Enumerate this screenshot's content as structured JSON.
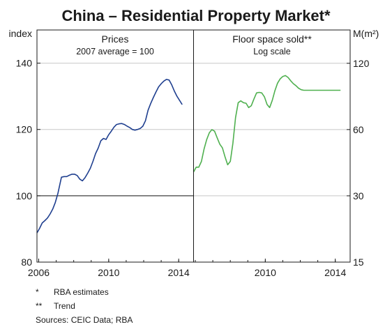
{
  "title": "China – Residential Property Market*",
  "chart_data": [
    {
      "type": "line",
      "panel_title": "Prices",
      "panel_subtitle": "2007 average = 100",
      "ylabel": "index",
      "ylim": [
        80,
        150
      ],
      "yticks": [
        80,
        100,
        120,
        140
      ],
      "xlim": [
        2005.9,
        2014.85
      ],
      "xticks": [
        "2006",
        "2010",
        "2014"
      ],
      "xtick_values": [
        2006,
        2010,
        2014
      ],
      "reference_line": 100,
      "grid": true,
      "color": "#1f3f8f",
      "series": [
        {
          "x": [
            2005.9,
            2006.05,
            2006.2,
            2006.35,
            2006.5,
            2006.65,
            2006.8,
            2006.95,
            2007.1,
            2007.2,
            2007.3,
            2007.45,
            2007.6,
            2007.75,
            2007.9,
            2008.05,
            2008.2,
            2008.35,
            2008.5,
            2008.65,
            2008.8,
            2008.95,
            2009.1,
            2009.25,
            2009.4,
            2009.55,
            2009.7,
            2009.85,
            2010.0,
            2010.15,
            2010.3,
            2010.45,
            2010.6,
            2010.75,
            2010.9,
            2011.05,
            2011.2,
            2011.35,
            2011.5,
            2011.65,
            2011.8,
            2011.95,
            2012.1,
            2012.25,
            2012.4,
            2012.55,
            2012.7,
            2012.85,
            2013.0,
            2013.15,
            2013.3,
            2013.45,
            2013.6,
            2013.75,
            2013.9,
            2014.05,
            2014.2
          ],
          "y": [
            88.8,
            90.2,
            91.8,
            92.5,
            93.3,
            94.5,
            96.0,
            98.0,
            100.8,
            103.2,
            105.6,
            105.8,
            105.8,
            106.2,
            106.5,
            106.5,
            106.1,
            105.0,
            104.5,
            105.5,
            106.8,
            108.3,
            110.4,
            112.7,
            114.4,
            116.6,
            117.3,
            117.0,
            118.4,
            119.5,
            120.7,
            121.5,
            121.7,
            121.8,
            121.5,
            121.0,
            120.6,
            120.0,
            119.8,
            120.0,
            120.3,
            121.0,
            122.6,
            125.8,
            127.8,
            129.6,
            131.3,
            132.8,
            133.8,
            134.6,
            135.1,
            134.9,
            133.5,
            131.6,
            130.0,
            128.8,
            127.5
          ]
        }
      ]
    },
    {
      "type": "line",
      "panel_title": "Floor space sold**",
      "panel_subtitle": "Log scale",
      "ylabel": "M(m²)",
      "yscale": "log",
      "ylim": [
        15,
        170
      ],
      "yticks": [
        15,
        30,
        60,
        120
      ],
      "xlim": [
        2005.9,
        2014.85
      ],
      "xticks": [
        "2010",
        "2014"
      ],
      "xtick_values": [
        2010,
        2014
      ],
      "grid": true,
      "color": "#4fb04f",
      "series": [
        {
          "x": [
            2005.9,
            2006.05,
            2006.2,
            2006.35,
            2006.5,
            2006.65,
            2006.8,
            2006.95,
            2007.1,
            2007.25,
            2007.4,
            2007.55,
            2007.7,
            2007.85,
            2008.0,
            2008.15,
            2008.3,
            2008.45,
            2008.6,
            2008.75,
            2008.9,
            2009.05,
            2009.2,
            2009.35,
            2009.5,
            2009.65,
            2009.8,
            2009.95,
            2010.1,
            2010.25,
            2010.4,
            2010.55,
            2010.7,
            2010.85,
            2011.0,
            2011.15,
            2011.3,
            2011.45,
            2011.6,
            2011.75,
            2011.9,
            2012.05,
            2012.2,
            2012.35,
            2012.5,
            2012.65,
            2012.8,
            2012.95,
            2013.1,
            2013.25,
            2013.4,
            2013.55,
            2013.7,
            2013.85,
            2014.0,
            2014.15,
            2014.3
          ],
          "y": [
            38.5,
            40.5,
            40.5,
            43.0,
            49.0,
            54.0,
            58.0,
            60.0,
            59.0,
            55.0,
            51.5,
            49.5,
            45.0,
            41.5,
            43.0,
            52.0,
            68.0,
            79.5,
            81.0,
            79.5,
            79.0,
            75.5,
            77.0,
            82.5,
            88.0,
            88.5,
            88.0,
            84.5,
            78.0,
            75.5,
            81.5,
            90.0,
            97.5,
            102.0,
            104.5,
            105.5,
            103.5,
            100.0,
            97.0,
            95.0,
            92.5,
            91.0,
            90.5,
            90.5,
            90.5,
            90.5,
            90.5,
            90.5,
            90.5,
            90.5,
            90.5,
            90.5,
            90.5,
            90.5,
            90.5,
            90.5,
            90.5
          ]
        }
      ]
    }
  ],
  "footnotes": [
    {
      "mark": "*",
      "text": "RBA estimates"
    },
    {
      "mark": "**",
      "text": "Trend"
    }
  ],
  "sources": "Sources:  CEIC Data; RBA"
}
